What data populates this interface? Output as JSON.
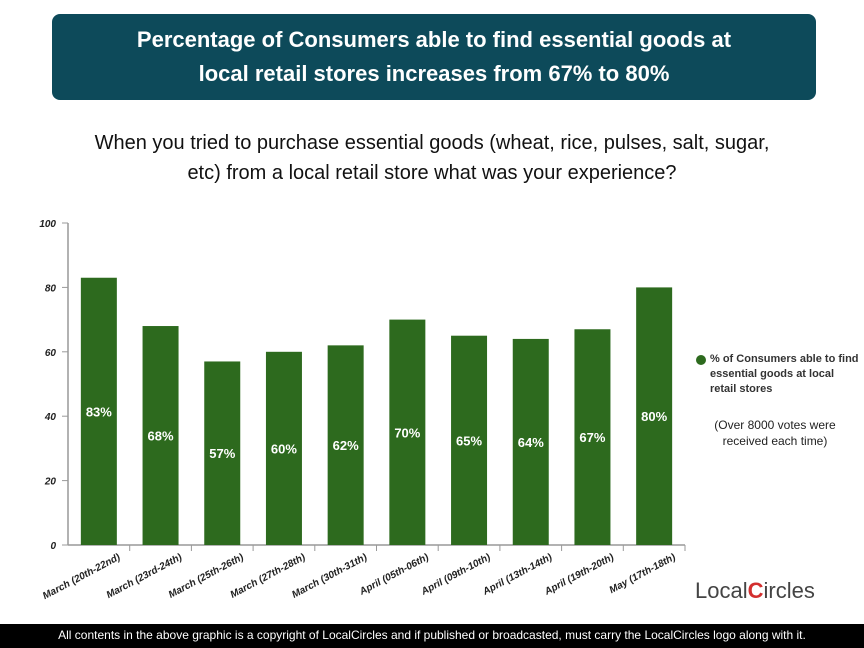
{
  "banner": {
    "line1": "Percentage of Consumers able to find essential goods at",
    "line2": "local retail stores increases from 67% to 80%"
  },
  "question": "When you tried to purchase essential goods (wheat, rice, pulses, salt, sugar, etc) from a local retail store what was your experience?",
  "note": "(Over 8000 votes were received each time)",
  "logo": {
    "pre": "Local",
    "c": "C",
    "post": "ircles"
  },
  "footer": "All contents in the above graphic is a copyright of LocalCircles and if published or broadcasted, must carry the LocalCircles logo along with it.",
  "colors": {
    "bar": "#2d6a1e",
    "banner": "#0d4a5a"
  },
  "chart_data": {
    "type": "bar",
    "categories": [
      "March (20th-22nd)",
      "March (23rd-24th)",
      "March (25th-26th)",
      "March (27th-28th)",
      "March (30th-31th)",
      "April (05th-06th)",
      "April (09th-10th)",
      "April (13th-14th)",
      "April (19th-20th)",
      "May (17th-18th)"
    ],
    "series": [
      {
        "name": "% of Consumers able to find essential goods at local retail stores",
        "values": [
          83,
          68,
          57,
          60,
          62,
          70,
          65,
          64,
          67,
          80
        ]
      }
    ],
    "data_labels": [
      "83%",
      "68%",
      "57%",
      "60%",
      "62%",
      "70%",
      "65%",
      "64%",
      "67%",
      "80%"
    ],
    "yticks": [
      0,
      20,
      40,
      60,
      80,
      100
    ],
    "ylim": [
      0,
      100
    ],
    "grid": false,
    "legend": "right"
  }
}
